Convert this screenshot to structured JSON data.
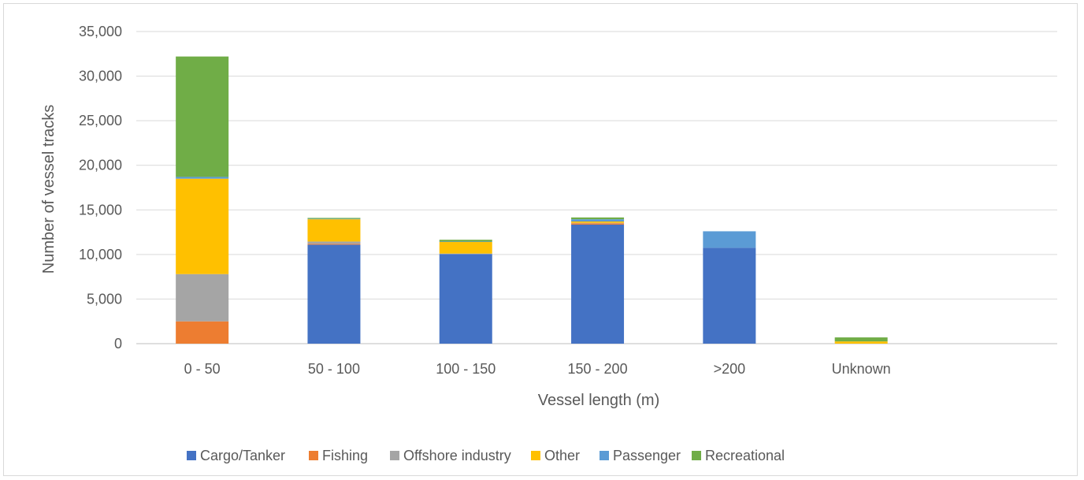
{
  "chart_data": {
    "type": "bar",
    "stacked": true,
    "title": "",
    "xlabel": "Vessel length (m)",
    "ylabel": "Number of vessel tracks",
    "ylim": [
      0,
      35000
    ],
    "yticks": [
      0,
      5000,
      10000,
      15000,
      20000,
      25000,
      30000,
      35000
    ],
    "ytick_labels": [
      "0",
      "5,000",
      "10,000",
      "15,000",
      "20,000",
      "25,000",
      "30,000",
      "35,000"
    ],
    "grid": true,
    "legend_position": "bottom",
    "categories": [
      "0 - 50",
      "50 - 100",
      "100 - 150",
      "150 - 200",
      ">200",
      "Unknown"
    ],
    "series": [
      {
        "name": "Cargo/Tanker",
        "color": "#4472C4",
        "values": [
          0,
          11100,
          10050,
          13350,
          10750,
          0
        ]
      },
      {
        "name": "Fishing",
        "color": "#ED7D31",
        "values": [
          2500,
          100,
          0,
          150,
          0,
          0
        ]
      },
      {
        "name": "Offshore industry",
        "color": "#A5A5A5",
        "values": [
          5300,
          250,
          50,
          50,
          0,
          0
        ]
      },
      {
        "name": "Other",
        "color": "#FFC000",
        "values": [
          10700,
          2500,
          1300,
          150,
          0,
          250
        ]
      },
      {
        "name": "Passenger",
        "color": "#5B9BD5",
        "values": [
          200,
          50,
          50,
          250,
          1850,
          0
        ]
      },
      {
        "name": "Recreational",
        "color": "#70AD47",
        "values": [
          13500,
          100,
          200,
          200,
          0,
          450
        ]
      }
    ]
  }
}
